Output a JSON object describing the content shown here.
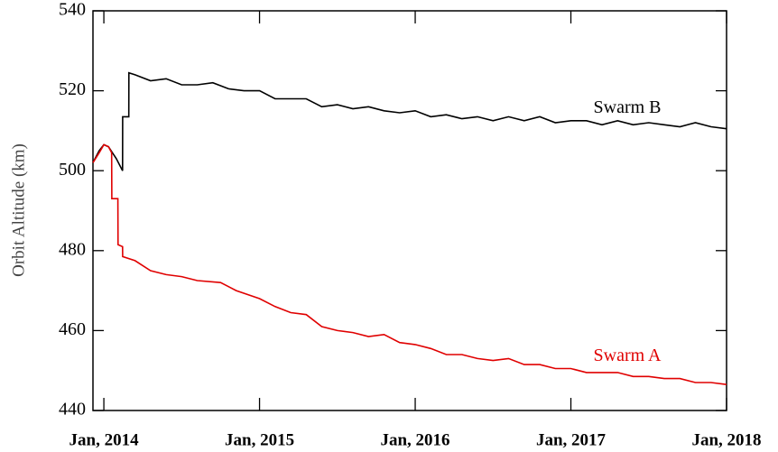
{
  "chart_data": {
    "type": "line",
    "ylabel": "Orbit Altitude (km)",
    "xlim": [
      2013.93,
      2018
    ],
    "ylim": [
      440,
      540
    ],
    "xticks": [
      {
        "value": 2014,
        "label": "Jan, 2014"
      },
      {
        "value": 2015,
        "label": "Jan, 2015"
      },
      {
        "value": 2016,
        "label": "Jan, 2016"
      },
      {
        "value": 2017,
        "label": "Jan, 2017"
      },
      {
        "value": 2018,
        "label": "Jan, 2018"
      }
    ],
    "yticks": [
      440,
      460,
      480,
      500,
      520,
      540
    ],
    "series": [
      {
        "name": "Swarm B",
        "color": "#000000",
        "x": [
          2013.93,
          2013.97,
          2014.0,
          2014.03,
          2014.08,
          2014.12,
          2014.121,
          2014.16,
          2014.161,
          2014.2,
          2014.3,
          2014.4,
          2014.5,
          2014.6,
          2014.7,
          2014.8,
          2014.9,
          2015.0,
          2015.1,
          2015.2,
          2015.3,
          2015.4,
          2015.5,
          2015.6,
          2015.7,
          2015.8,
          2015.9,
          2016.0,
          2016.1,
          2016.2,
          2016.3,
          2016.4,
          2016.5,
          2016.6,
          2016.7,
          2016.8,
          2016.9,
          2017.0,
          2017.1,
          2017.2,
          2017.3,
          2017.4,
          2017.5,
          2017.6,
          2017.7,
          2017.8,
          2017.9,
          2018.0
        ],
        "values": [
          502,
          505,
          506.5,
          506,
          503,
          500,
          513.5,
          513.5,
          524.5,
          524,
          522.5,
          523,
          521.5,
          521.5,
          522,
          520.5,
          520,
          520,
          518,
          518,
          518,
          516,
          516.5,
          515.5,
          516,
          515,
          514.5,
          515,
          513.5,
          514,
          513,
          513.5,
          512.5,
          513.5,
          512.5,
          513.5,
          512,
          512.5,
          512.5,
          511.5,
          512.5,
          511.5,
          512,
          511.5,
          511,
          512,
          511,
          510.5
        ]
      },
      {
        "name": "Swarm A",
        "color": "#e00000",
        "x": [
          2013.93,
          2013.97,
          2014.0,
          2014.03,
          2014.05,
          2014.051,
          2014.09,
          2014.091,
          2014.12,
          2014.121,
          2014.2,
          2014.3,
          2014.4,
          2014.5,
          2014.6,
          2014.75,
          2014.85,
          2015.0,
          2015.1,
          2015.2,
          2015.3,
          2015.4,
          2015.5,
          2015.6,
          2015.7,
          2015.8,
          2015.9,
          2016.0,
          2016.1,
          2016.2,
          2016.3,
          2016.4,
          2016.5,
          2016.6,
          2016.7,
          2016.8,
          2016.9,
          2017.0,
          2017.1,
          2017.2,
          2017.3,
          2017.4,
          2017.5,
          2017.6,
          2017.7,
          2017.8,
          2017.9,
          2018.0
        ],
        "values": [
          502,
          504.5,
          506.5,
          506,
          504.5,
          493,
          493,
          481.5,
          481,
          478.5,
          477.5,
          475,
          474,
          473.5,
          472.5,
          472,
          470,
          468,
          466,
          464.5,
          464,
          461,
          460,
          459.5,
          458.5,
          459,
          457,
          456.5,
          455.5,
          454,
          454,
          453,
          452.5,
          453,
          451.5,
          451.5,
          450.5,
          450.5,
          449.5,
          449.5,
          449.5,
          448.5,
          448.5,
          448,
          448,
          447,
          447,
          446.5
        ]
      }
    ]
  }
}
